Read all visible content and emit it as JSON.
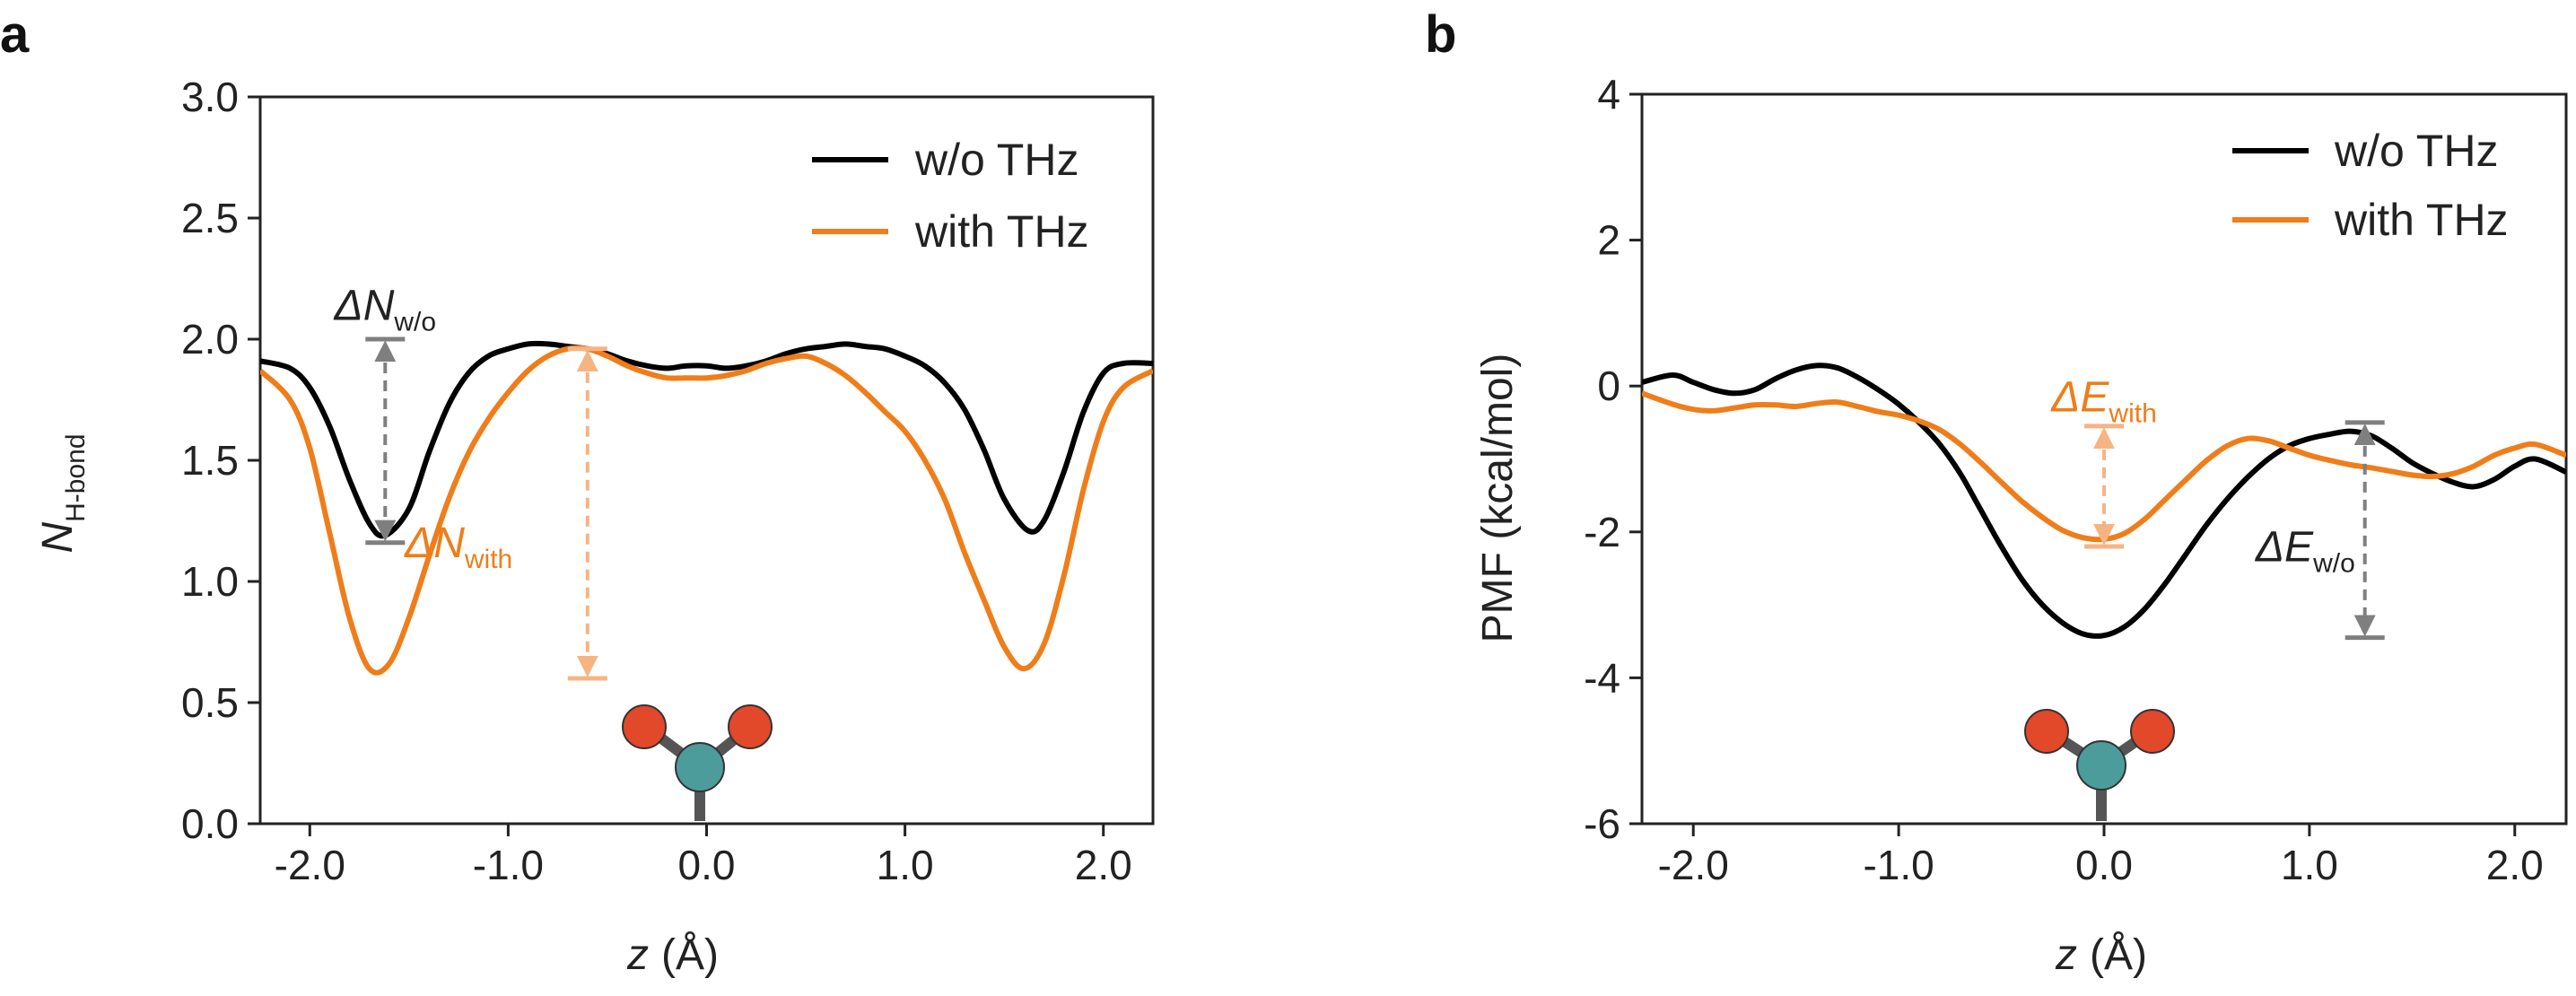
{
  "chart_data": [
    {
      "type": "line",
      "panel_label": "a",
      "ylabel": "N",
      "ylabel_sub": "H-bond",
      "xlabel_var": "z",
      "xlabel_unit": "(Å)",
      "xlim": [
        -2.25,
        2.25
      ],
      "ylim": [
        0,
        3
      ],
      "xticks": [
        -2,
        -1,
        0,
        1,
        2
      ],
      "xtick_labels": [
        "-2.0",
        "-1.0",
        "0.0",
        "1.0",
        "2.0"
      ],
      "yticks": [
        0,
        0.5,
        1,
        1.5,
        2,
        2.5,
        3
      ],
      "ytick_labels": [
        "0.0",
        "0.5",
        "1.0",
        "1.5",
        "2.0",
        "2.5",
        "3.0"
      ],
      "legend_position": "top-right",
      "series": [
        {
          "name": "w/o THz",
          "color": "#000000",
          "x": [
            -2.25,
            -2.1,
            -2.0,
            -1.9,
            -1.8,
            -1.7,
            -1.62,
            -1.5,
            -1.4,
            -1.3,
            -1.2,
            -1.1,
            -1.0,
            -0.9,
            -0.8,
            -0.7,
            -0.6,
            -0.5,
            -0.4,
            -0.3,
            -0.2,
            -0.1,
            0.0,
            0.1,
            0.2,
            0.3,
            0.4,
            0.5,
            0.6,
            0.7,
            0.8,
            0.9,
            1.0,
            1.1,
            1.2,
            1.3,
            1.4,
            1.5,
            1.62,
            1.7,
            1.8,
            1.9,
            2.0,
            2.1,
            2.25
          ],
          "y": [
            1.91,
            1.88,
            1.8,
            1.64,
            1.42,
            1.24,
            1.19,
            1.3,
            1.53,
            1.73,
            1.86,
            1.93,
            1.96,
            1.98,
            1.98,
            1.97,
            1.96,
            1.94,
            1.91,
            1.89,
            1.88,
            1.89,
            1.89,
            1.88,
            1.89,
            1.91,
            1.94,
            1.96,
            1.97,
            1.98,
            1.97,
            1.96,
            1.93,
            1.89,
            1.82,
            1.71,
            1.54,
            1.34,
            1.21,
            1.25,
            1.45,
            1.7,
            1.86,
            1.9,
            1.9
          ]
        },
        {
          "name": "with THz",
          "color": "#ef7d1a",
          "x": [
            -2.25,
            -2.1,
            -2.0,
            -1.9,
            -1.8,
            -1.7,
            -1.6,
            -1.5,
            -1.4,
            -1.3,
            -1.2,
            -1.1,
            -1.0,
            -0.9,
            -0.8,
            -0.7,
            -0.6,
            -0.5,
            -0.4,
            -0.3,
            -0.2,
            -0.1,
            0.0,
            0.1,
            0.2,
            0.3,
            0.4,
            0.5,
            0.6,
            0.7,
            0.8,
            0.9,
            1.0,
            1.1,
            1.2,
            1.3,
            1.4,
            1.5,
            1.6,
            1.7,
            1.8,
            1.9,
            2.0,
            2.1,
            2.25
          ],
          "y": [
            1.87,
            1.75,
            1.55,
            1.2,
            0.85,
            0.64,
            0.66,
            0.85,
            1.1,
            1.34,
            1.53,
            1.67,
            1.78,
            1.87,
            1.93,
            1.96,
            1.96,
            1.93,
            1.89,
            1.86,
            1.84,
            1.84,
            1.84,
            1.85,
            1.87,
            1.9,
            1.92,
            1.93,
            1.9,
            1.85,
            1.78,
            1.7,
            1.62,
            1.5,
            1.34,
            1.12,
            0.92,
            0.73,
            0.64,
            0.74,
            1.02,
            1.38,
            1.66,
            1.8,
            1.87
          ]
        }
      ],
      "annotations": [
        {
          "label_main": "ΔN",
          "label_sub": "w/o",
          "color": "#7f7f7f",
          "x": -1.62,
          "y_top": 2.0,
          "y_bottom": 1.16,
          "label_x": -1.62,
          "label_y": 2.08
        },
        {
          "label_main": "ΔN",
          "label_sub": "with",
          "color": "#f6b483",
          "x": -0.6,
          "y_top": 1.96,
          "y_bottom": 0.6,
          "label_x": -1.25,
          "label_y": 1.1
        }
      ]
    },
    {
      "type": "line",
      "panel_label": "b",
      "ylabel": "PMF (kcal/mol)",
      "xlabel_var": "z",
      "xlabel_unit": "(Å)",
      "xlim": [
        -2.25,
        2.25
      ],
      "ylim": [
        -6,
        4
      ],
      "xticks": [
        -2,
        -1,
        0,
        1,
        2
      ],
      "xtick_labels": [
        "-2.0",
        "-1.0",
        "0.0",
        "1.0",
        "2.0"
      ],
      "yticks": [
        -6,
        -4,
        -2,
        0,
        2,
        4
      ],
      "ytick_labels": [
        "-6",
        "-4",
        "-2",
        "0",
        "2",
        "4"
      ],
      "legend_position": "top-right",
      "series": [
        {
          "name": "w/o THz",
          "color": "#000000",
          "x": [
            -2.25,
            -2.1,
            -2.0,
            -1.9,
            -1.8,
            -1.7,
            -1.6,
            -1.5,
            -1.4,
            -1.3,
            -1.2,
            -1.1,
            -1.0,
            -0.9,
            -0.8,
            -0.7,
            -0.6,
            -0.5,
            -0.4,
            -0.3,
            -0.2,
            -0.1,
            0.0,
            0.1,
            0.2,
            0.3,
            0.4,
            0.5,
            0.6,
            0.7,
            0.8,
            0.9,
            1.0,
            1.1,
            1.2,
            1.3,
            1.4,
            1.5,
            1.6,
            1.7,
            1.8,
            1.9,
            2.0,
            2.1,
            2.25
          ],
          "y": [
            0.05,
            0.15,
            0.05,
            -0.05,
            -0.1,
            -0.05,
            0.1,
            0.22,
            0.28,
            0.25,
            0.12,
            -0.05,
            -0.25,
            -0.5,
            -0.8,
            -1.2,
            -1.7,
            -2.2,
            -2.65,
            -3.0,
            -3.25,
            -3.4,
            -3.42,
            -3.3,
            -3.05,
            -2.7,
            -2.3,
            -1.9,
            -1.55,
            -1.25,
            -1.0,
            -0.82,
            -0.72,
            -0.66,
            -0.62,
            -0.68,
            -0.85,
            -1.05,
            -1.2,
            -1.32,
            -1.38,
            -1.28,
            -1.1,
            -1.0,
            -1.18
          ]
        },
        {
          "name": "with THz",
          "color": "#ef7d1a",
          "x": [
            -2.25,
            -2.1,
            -2.0,
            -1.9,
            -1.8,
            -1.7,
            -1.6,
            -1.5,
            -1.4,
            -1.3,
            -1.2,
            -1.1,
            -1.0,
            -0.9,
            -0.8,
            -0.7,
            -0.6,
            -0.5,
            -0.4,
            -0.3,
            -0.2,
            -0.1,
            0.0,
            0.1,
            0.2,
            0.3,
            0.4,
            0.5,
            0.6,
            0.7,
            0.8,
            0.9,
            1.0,
            1.1,
            1.2,
            1.3,
            1.4,
            1.5,
            1.6,
            1.7,
            1.8,
            1.9,
            2.0,
            2.1,
            2.25
          ],
          "y": [
            -0.1,
            -0.25,
            -0.32,
            -0.34,
            -0.3,
            -0.26,
            -0.26,
            -0.28,
            -0.24,
            -0.22,
            -0.28,
            -0.35,
            -0.4,
            -0.48,
            -0.6,
            -0.8,
            -1.05,
            -1.32,
            -1.58,
            -1.8,
            -1.98,
            -2.08,
            -2.1,
            -2.02,
            -1.82,
            -1.55,
            -1.28,
            -1.02,
            -0.82,
            -0.72,
            -0.75,
            -0.85,
            -0.95,
            -1.02,
            -1.08,
            -1.12,
            -1.17,
            -1.22,
            -1.24,
            -1.2,
            -1.1,
            -0.95,
            -0.85,
            -0.8,
            -0.95
          ]
        }
      ],
      "annotations": [
        {
          "label_main": "ΔE",
          "label_sub": "with",
          "color": "#f6b483",
          "x": 0.0,
          "y_top": -0.55,
          "y_bottom": -2.2,
          "label_x": 0.0,
          "label_y": -0.35
        },
        {
          "label_main": "ΔE",
          "label_sub": "w/o",
          "color": "#7f7f7f",
          "x": 1.27,
          "y_top": -0.5,
          "y_bottom": -3.45,
          "label_x": 0.98,
          "label_y": -2.4
        }
      ]
    }
  ]
}
